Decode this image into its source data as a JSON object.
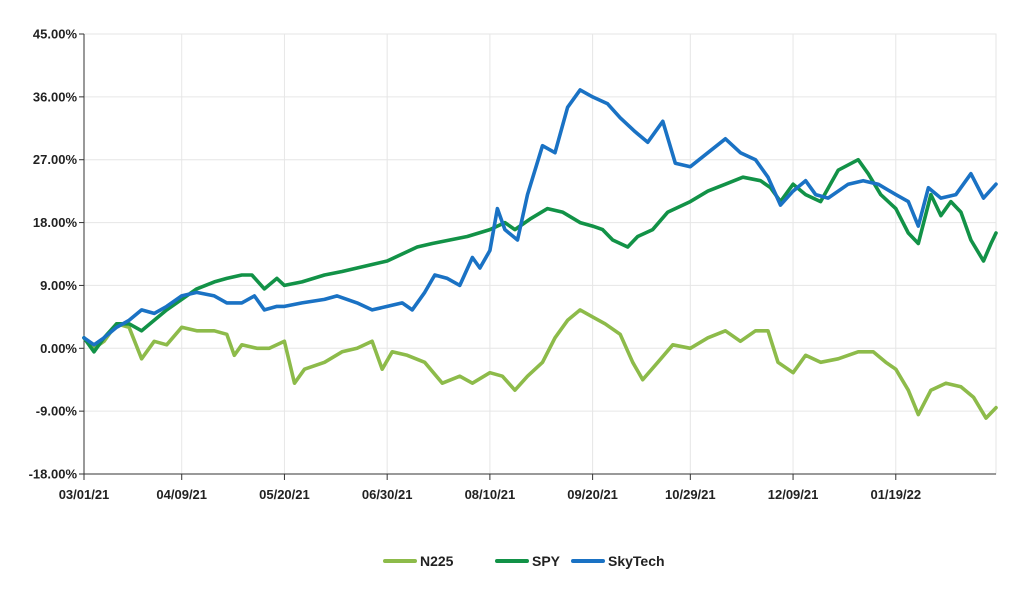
{
  "chart_data": {
    "type": "line",
    "title": "",
    "xlabel": "",
    "ylabel": "",
    "x_start": "2021-03-01",
    "x_end": "2022-02-28",
    "ylim": [
      -18,
      45
    ],
    "y_ticks": [
      45,
      36,
      27,
      18,
      9,
      0,
      -9,
      -18
    ],
    "y_tick_labels": [
      "45.00%",
      "36.00%",
      "27.00%",
      "18.00%",
      "9.00%",
      "0.00%",
      "-9.00%",
      "-18.00%"
    ],
    "x_tick_dates": [
      "2021-03-01",
      "2021-04-09",
      "2021-05-20",
      "2021-06-30",
      "2021-08-10",
      "2021-09-20",
      "2021-10-29",
      "2021-12-09",
      "2022-01-19"
    ],
    "x_tick_labels": [
      "03/01/21",
      "04/09/21",
      "05/20/21",
      "06/30/21",
      "08/10/21",
      "09/20/21",
      "10/29/21",
      "12/09/21",
      "01/19/22"
    ],
    "grid": true,
    "legend_position": "bottom",
    "series": [
      {
        "name": "N225",
        "color": "#8dbb4a",
        "points": [
          [
            "2021-03-01",
            1.5
          ],
          [
            "2021-03-05",
            0.0
          ],
          [
            "2021-03-09",
            1.0
          ],
          [
            "2021-03-14",
            3.5
          ],
          [
            "2021-03-19",
            3.0
          ],
          [
            "2021-03-24",
            -1.5
          ],
          [
            "2021-03-29",
            1.0
          ],
          [
            "2021-04-03",
            0.5
          ],
          [
            "2021-04-09",
            3.0
          ],
          [
            "2021-04-15",
            2.5
          ],
          [
            "2021-04-22",
            2.5
          ],
          [
            "2021-04-27",
            2.0
          ],
          [
            "2021-04-30",
            -1.0
          ],
          [
            "2021-05-03",
            0.5
          ],
          [
            "2021-05-09",
            0.0
          ],
          [
            "2021-05-14",
            0.0
          ],
          [
            "2021-05-20",
            1.0
          ],
          [
            "2021-05-24",
            -5.0
          ],
          [
            "2021-05-28",
            -3.0
          ],
          [
            "2021-06-05",
            -2.0
          ],
          [
            "2021-06-12",
            -0.5
          ],
          [
            "2021-06-18",
            0.0
          ],
          [
            "2021-06-24",
            1.0
          ],
          [
            "2021-06-28",
            -3.0
          ],
          [
            "2021-07-02",
            -0.5
          ],
          [
            "2021-07-08",
            -1.0
          ],
          [
            "2021-07-15",
            -2.0
          ],
          [
            "2021-07-22",
            -5.0
          ],
          [
            "2021-07-29",
            -4.0
          ],
          [
            "2021-08-03",
            -5.0
          ],
          [
            "2021-08-10",
            -3.5
          ],
          [
            "2021-08-15",
            -4.0
          ],
          [
            "2021-08-20",
            -6.0
          ],
          [
            "2021-08-25",
            -4.0
          ],
          [
            "2021-08-31",
            -2.0
          ],
          [
            "2021-09-05",
            1.5
          ],
          [
            "2021-09-10",
            4.0
          ],
          [
            "2021-09-15",
            5.5
          ],
          [
            "2021-09-20",
            4.5
          ],
          [
            "2021-09-25",
            3.5
          ],
          [
            "2021-10-01",
            2.0
          ],
          [
            "2021-10-06",
            -2.0
          ],
          [
            "2021-10-10",
            -4.5
          ],
          [
            "2021-10-16",
            -2.0
          ],
          [
            "2021-10-22",
            0.5
          ],
          [
            "2021-10-29",
            0.0
          ],
          [
            "2021-11-05",
            1.5
          ],
          [
            "2021-11-12",
            2.5
          ],
          [
            "2021-11-18",
            1.0
          ],
          [
            "2021-11-24",
            2.5
          ],
          [
            "2021-11-29",
            2.5
          ],
          [
            "2021-12-03",
            -2.0
          ],
          [
            "2021-12-09",
            -3.5
          ],
          [
            "2021-12-14",
            -1.0
          ],
          [
            "2021-12-20",
            -2.0
          ],
          [
            "2021-12-27",
            -1.5
          ],
          [
            "2022-01-04",
            -0.5
          ],
          [
            "2022-01-10",
            -0.5
          ],
          [
            "2022-01-15",
            -2.0
          ],
          [
            "2022-01-19",
            -3.0
          ],
          [
            "2022-01-24",
            -6.0
          ],
          [
            "2022-01-28",
            -9.5
          ],
          [
            "2022-02-02",
            -6.0
          ],
          [
            "2022-02-08",
            -5.0
          ],
          [
            "2022-02-14",
            -5.5
          ],
          [
            "2022-02-19",
            -7.0
          ],
          [
            "2022-02-24",
            -10.0
          ],
          [
            "2022-02-28",
            -8.5
          ]
        ]
      },
      {
        "name": "SPY",
        "color": "#129247",
        "points": [
          [
            "2021-03-01",
            1.5
          ],
          [
            "2021-03-05",
            -0.5
          ],
          [
            "2021-03-09",
            1.5
          ],
          [
            "2021-03-14",
            3.5
          ],
          [
            "2021-03-19",
            3.5
          ],
          [
            "2021-03-24",
            2.5
          ],
          [
            "2021-03-29",
            4.0
          ],
          [
            "2021-04-03",
            5.5
          ],
          [
            "2021-04-09",
            7.0
          ],
          [
            "2021-04-15",
            8.5
          ],
          [
            "2021-04-22",
            9.5
          ],
          [
            "2021-04-27",
            10.0
          ],
          [
            "2021-05-03",
            10.5
          ],
          [
            "2021-05-07",
            10.5
          ],
          [
            "2021-05-12",
            8.5
          ],
          [
            "2021-05-17",
            10.0
          ],
          [
            "2021-05-20",
            9.0
          ],
          [
            "2021-05-27",
            9.5
          ],
          [
            "2021-06-05",
            10.5
          ],
          [
            "2021-06-12",
            11.0
          ],
          [
            "2021-06-18",
            11.5
          ],
          [
            "2021-06-24",
            12.0
          ],
          [
            "2021-06-30",
            12.5
          ],
          [
            "2021-07-06",
            13.5
          ],
          [
            "2021-07-12",
            14.5
          ],
          [
            "2021-07-18",
            15.0
          ],
          [
            "2021-07-25",
            15.5
          ],
          [
            "2021-08-01",
            16.0
          ],
          [
            "2021-08-10",
            17.0
          ],
          [
            "2021-08-16",
            18.0
          ],
          [
            "2021-08-20",
            17.0
          ],
          [
            "2021-08-26",
            18.5
          ],
          [
            "2021-09-02",
            20.0
          ],
          [
            "2021-09-08",
            19.5
          ],
          [
            "2021-09-15",
            18.0
          ],
          [
            "2021-09-20",
            17.5
          ],
          [
            "2021-09-24",
            17.0
          ],
          [
            "2021-09-28",
            15.5
          ],
          [
            "2021-10-04",
            14.5
          ],
          [
            "2021-10-08",
            16.0
          ],
          [
            "2021-10-14",
            17.0
          ],
          [
            "2021-10-20",
            19.5
          ],
          [
            "2021-10-29",
            21.0
          ],
          [
            "2021-11-05",
            22.5
          ],
          [
            "2021-11-12",
            23.5
          ],
          [
            "2021-11-19",
            24.5
          ],
          [
            "2021-11-26",
            24.0
          ],
          [
            "2021-11-30",
            23.0
          ],
          [
            "2021-12-04",
            21.0
          ],
          [
            "2021-12-09",
            23.5
          ],
          [
            "2021-12-14",
            22.0
          ],
          [
            "2021-12-20",
            21.0
          ],
          [
            "2021-12-27",
            25.5
          ],
          [
            "2022-01-04",
            27.0
          ],
          [
            "2022-01-08",
            25.0
          ],
          [
            "2022-01-13",
            22.0
          ],
          [
            "2022-01-19",
            20.0
          ],
          [
            "2022-01-24",
            16.5
          ],
          [
            "2022-01-28",
            15.0
          ],
          [
            "2022-02-02",
            22.0
          ],
          [
            "2022-02-06",
            19.0
          ],
          [
            "2022-02-10",
            21.0
          ],
          [
            "2022-02-14",
            19.5
          ],
          [
            "2022-02-18",
            15.5
          ],
          [
            "2022-02-23",
            12.5
          ],
          [
            "2022-02-26",
            15.0
          ],
          [
            "2022-02-28",
            16.5
          ]
        ]
      },
      {
        "name": "SkyTech",
        "color": "#1a72c4",
        "points": [
          [
            "2021-03-01",
            1.5
          ],
          [
            "2021-03-05",
            0.5
          ],
          [
            "2021-03-09",
            1.5
          ],
          [
            "2021-03-14",
            3.0
          ],
          [
            "2021-03-19",
            4.0
          ],
          [
            "2021-03-24",
            5.5
          ],
          [
            "2021-03-29",
            5.0
          ],
          [
            "2021-04-03",
            6.0
          ],
          [
            "2021-04-09",
            7.5
          ],
          [
            "2021-04-15",
            8.0
          ],
          [
            "2021-04-22",
            7.5
          ],
          [
            "2021-04-27",
            6.5
          ],
          [
            "2021-05-03",
            6.5
          ],
          [
            "2021-05-08",
            7.5
          ],
          [
            "2021-05-12",
            5.5
          ],
          [
            "2021-05-17",
            6.0
          ],
          [
            "2021-05-20",
            6.0
          ],
          [
            "2021-05-27",
            6.5
          ],
          [
            "2021-06-05",
            7.0
          ],
          [
            "2021-06-10",
            7.5
          ],
          [
            "2021-06-18",
            6.5
          ],
          [
            "2021-06-24",
            5.5
          ],
          [
            "2021-06-30",
            6.0
          ],
          [
            "2021-07-06",
            6.5
          ],
          [
            "2021-07-10",
            5.5
          ],
          [
            "2021-07-15",
            8.0
          ],
          [
            "2021-07-19",
            10.5
          ],
          [
            "2021-07-24",
            10.0
          ],
          [
            "2021-07-29",
            9.0
          ],
          [
            "2021-08-03",
            13.0
          ],
          [
            "2021-08-06",
            11.5
          ],
          [
            "2021-08-10",
            14.0
          ],
          [
            "2021-08-13",
            20.0
          ],
          [
            "2021-08-16",
            17.0
          ],
          [
            "2021-08-21",
            15.5
          ],
          [
            "2021-08-25",
            22.0
          ],
          [
            "2021-08-31",
            29.0
          ],
          [
            "2021-09-05",
            28.0
          ],
          [
            "2021-09-10",
            34.5
          ],
          [
            "2021-09-15",
            37.0
          ],
          [
            "2021-09-20",
            36.0
          ],
          [
            "2021-09-26",
            35.0
          ],
          [
            "2021-10-01",
            33.0
          ],
          [
            "2021-10-07",
            31.0
          ],
          [
            "2021-10-12",
            29.5
          ],
          [
            "2021-10-18",
            32.5
          ],
          [
            "2021-10-23",
            26.5
          ],
          [
            "2021-10-29",
            26.0
          ],
          [
            "2021-11-05",
            28.0
          ],
          [
            "2021-11-12",
            30.0
          ],
          [
            "2021-11-18",
            28.0
          ],
          [
            "2021-11-24",
            27.0
          ],
          [
            "2021-11-29",
            24.5
          ],
          [
            "2021-12-04",
            20.5
          ],
          [
            "2021-12-09",
            22.5
          ],
          [
            "2021-12-14",
            24.0
          ],
          [
            "2021-12-18",
            22.0
          ],
          [
            "2021-12-23",
            21.5
          ],
          [
            "2021-12-31",
            23.5
          ],
          [
            "2022-01-06",
            24.0
          ],
          [
            "2022-01-12",
            23.5
          ],
          [
            "2022-01-19",
            22.0
          ],
          [
            "2022-01-24",
            21.0
          ],
          [
            "2022-01-28",
            17.5
          ],
          [
            "2022-02-01",
            23.0
          ],
          [
            "2022-02-06",
            21.5
          ],
          [
            "2022-02-12",
            22.0
          ],
          [
            "2022-02-18",
            25.0
          ],
          [
            "2022-02-23",
            21.5
          ],
          [
            "2022-02-28",
            23.5
          ]
        ]
      }
    ]
  }
}
